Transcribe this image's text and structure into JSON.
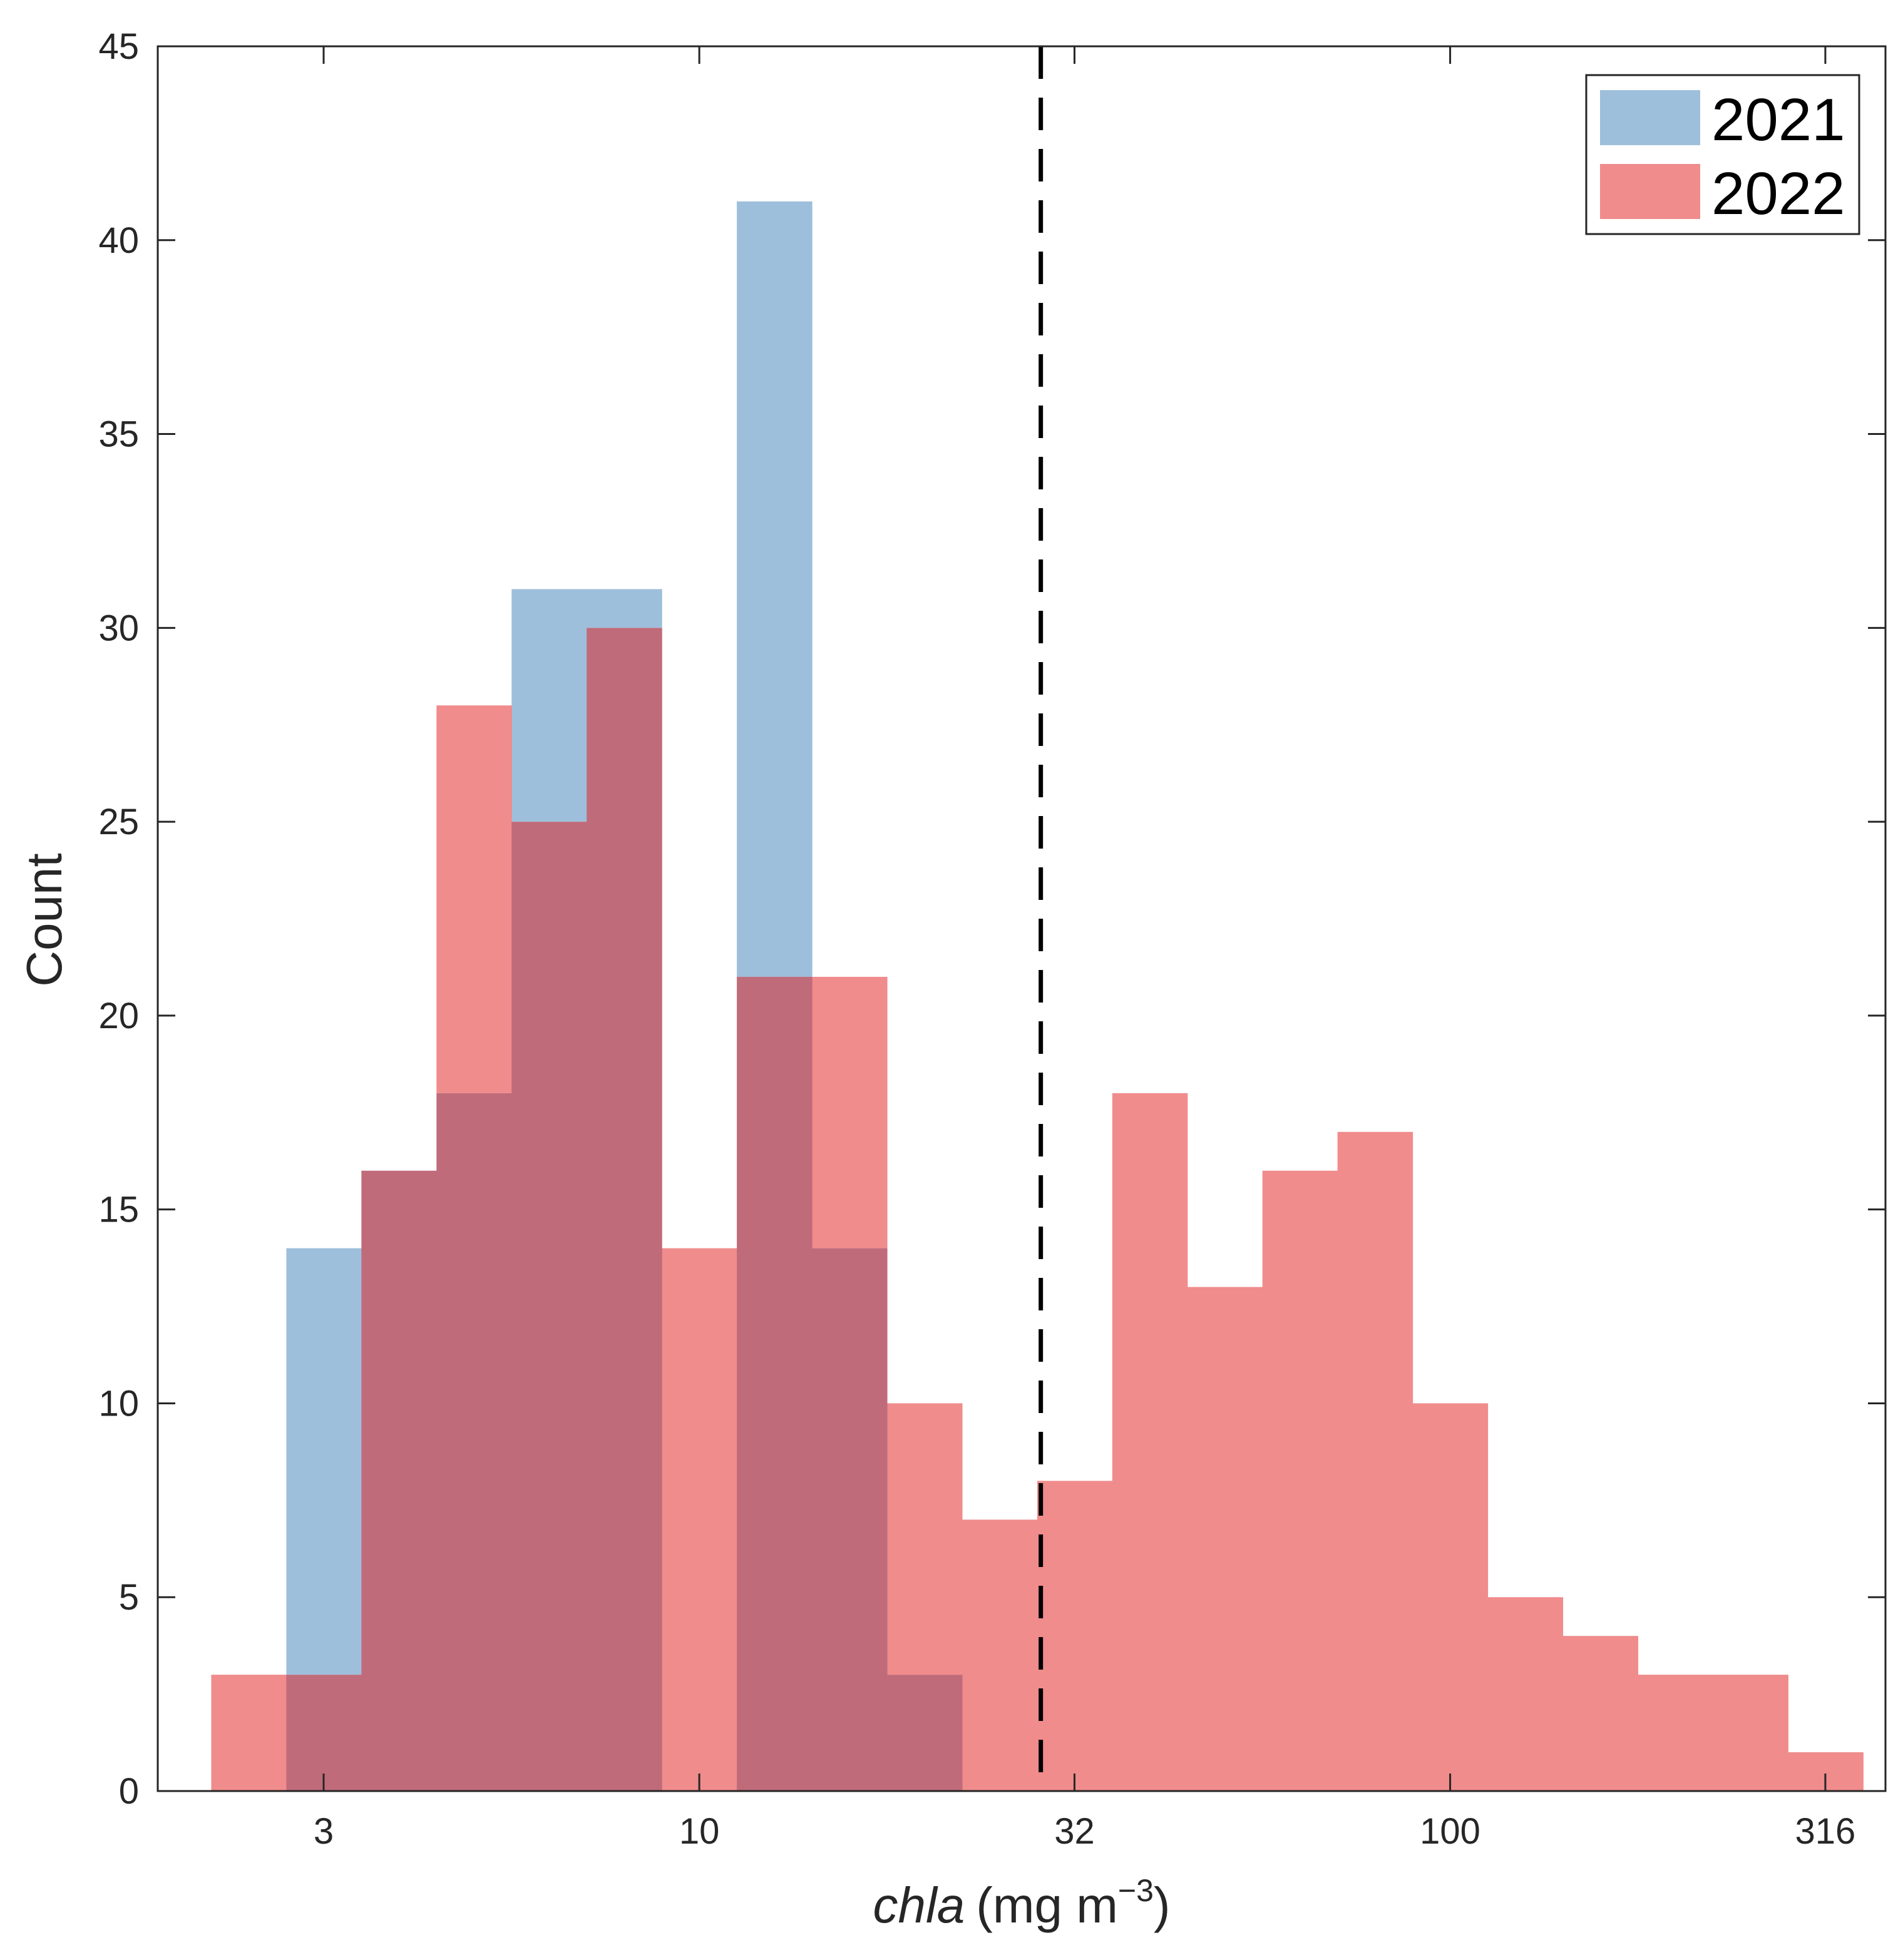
{
  "chart_data": {
    "type": "histogram",
    "xscale": "log",
    "xlabel_italic": "chla",
    "xlabel_units": "(mg m",
    "xlabel_exponent": "−3",
    "xlabel_close": ")",
    "ylabel": "Count",
    "xlim": [
      1.9,
      380
    ],
    "ylim": [
      0,
      45
    ],
    "xticks": [
      {
        "value": 3.16,
        "label": "3"
      },
      {
        "value": 10,
        "label": "10"
      },
      {
        "value": 31.6,
        "label": "32"
      },
      {
        "value": 100,
        "label": "100"
      },
      {
        "value": 316,
        "label": "316"
      }
    ],
    "yticks": [
      0,
      5,
      10,
      15,
      20,
      25,
      30,
      35,
      40,
      45
    ],
    "bin_edges_log10": [
      0.35,
      0.45,
      0.55,
      0.65,
      0.75,
      0.85,
      0.95,
      1.05,
      1.15,
      1.25,
      1.35,
      1.45,
      1.55,
      1.65,
      1.75,
      1.85,
      1.95,
      2.05,
      2.15,
      2.25,
      2.35,
      2.45,
      2.55
    ],
    "series": [
      {
        "name": "2021",
        "color": "#9ebfdb",
        "counts": [
          0,
          14,
          16,
          18,
          31,
          31,
          0,
          41,
          14,
          3,
          0,
          0,
          0,
          0,
          0,
          0,
          0,
          0,
          0,
          0,
          0,
          0
        ]
      },
      {
        "name": "2022",
        "color": "#f08c8c",
        "counts": [
          3,
          3,
          16,
          28,
          25,
          30,
          14,
          21,
          21,
          10,
          7,
          8,
          18,
          13,
          16,
          17,
          10,
          5,
          4,
          3,
          3,
          1
        ]
      }
    ],
    "overlap_color": "#c06b7a",
    "reference_line": {
      "value": 28.5,
      "style": "dashed",
      "color": "#000000"
    },
    "legend": {
      "position": "top-right",
      "entries": [
        "2021",
        "2022"
      ]
    }
  }
}
